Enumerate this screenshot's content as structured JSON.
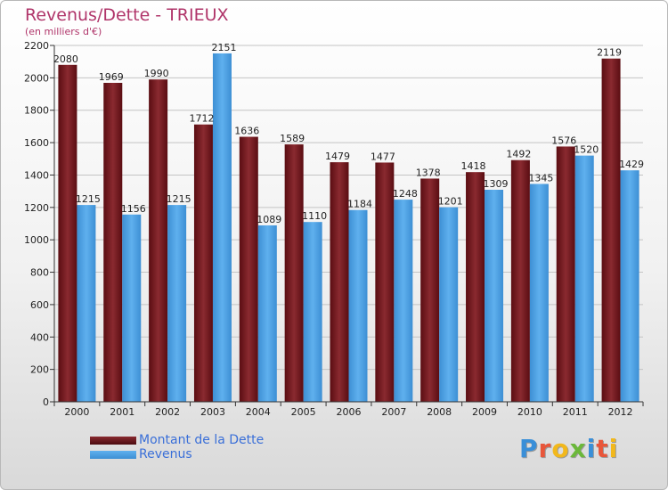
{
  "chart_data": {
    "type": "bar",
    "title": "Revenus/Dette - TRIEUX",
    "subtitle": "(en milliers d'€)",
    "categories": [
      "2000",
      "2001",
      "2002",
      "2003",
      "2004",
      "2005",
      "2006",
      "2007",
      "2008",
      "2009",
      "2010",
      "2011",
      "2012"
    ],
    "series": [
      {
        "name": "Montant de la Dette",
        "color": "#7a1a1f",
        "values": [
          2080,
          1969,
          1990,
          1712,
          1636,
          1589,
          1479,
          1477,
          1378,
          1418,
          1492,
          1576,
          2119
        ]
      },
      {
        "name": "Revenus",
        "color": "#4a9fe0",
        "values": [
          1215,
          1156,
          1215,
          2151,
          1089,
          1110,
          1184,
          1248,
          1201,
          1309,
          1345,
          1520,
          1429
        ]
      }
    ],
    "ylim": [
      0,
      2200
    ],
    "yticks": [
      0,
      200,
      400,
      600,
      800,
      1000,
      1200,
      1400,
      1600,
      1800,
      2000,
      2200
    ],
    "grid": true,
    "legend_position": "bottom-left"
  },
  "branding": {
    "logo_text": "Proxiti",
    "logo_colors": [
      "#3a8fd8",
      "#e8563a",
      "#f2b81c",
      "#6bb83a",
      "#3a8fd8",
      "#e8563a",
      "#f2b81c"
    ]
  }
}
